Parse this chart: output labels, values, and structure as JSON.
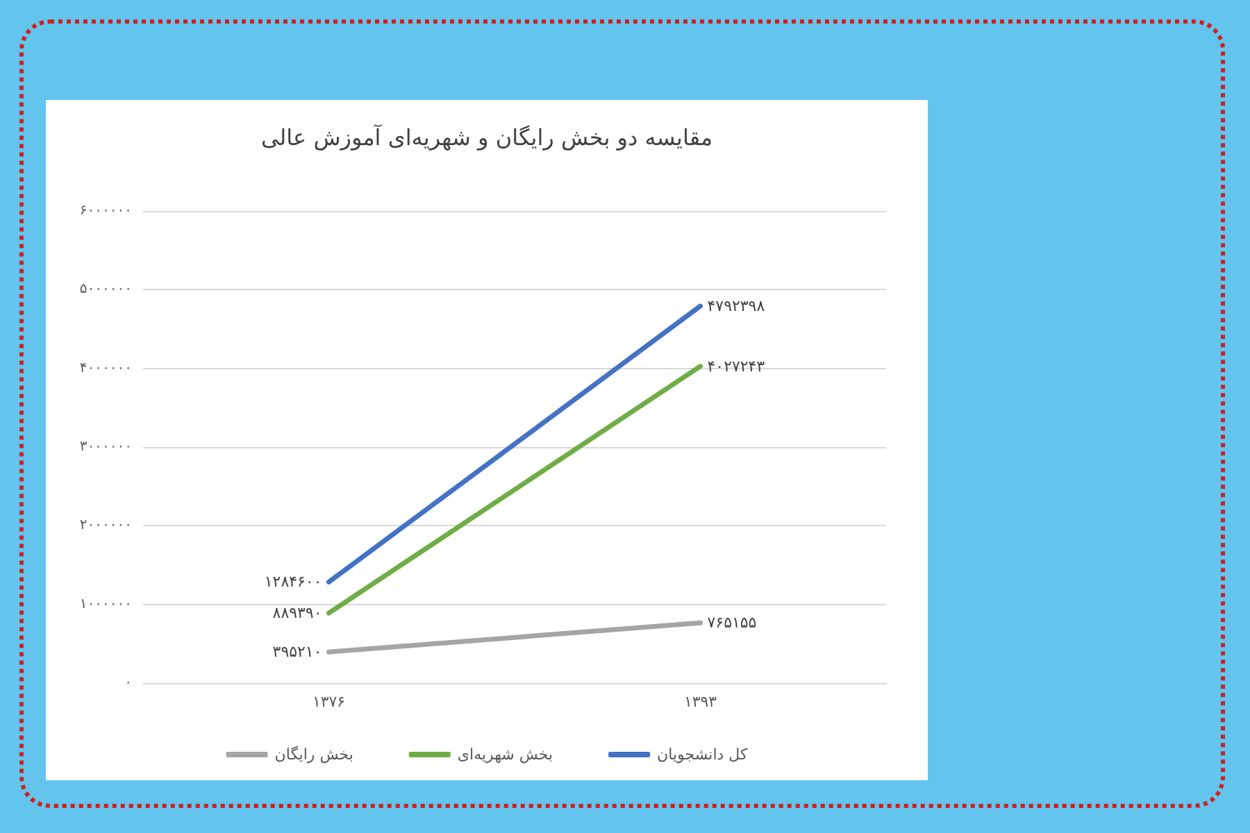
{
  "chart_data": {
    "type": "line",
    "title": "مقایسه دو بخش رایگان و شهریه‌ای آموزش عالی",
    "categories": [
      "۱۳۷۶",
      "۱۳۹۳"
    ],
    "series": [
      {
        "name": "بخش رایگان",
        "color": "#a5a5a5",
        "values": [
          395210,
          765155
        ],
        "value_labels": [
          "۳۹۵۲۱۰",
          "۷۶۵۱۵۵"
        ]
      },
      {
        "name": "بخش شهریه‌ای",
        "color": "#70ad47",
        "values": [
          889390,
          4027243
        ],
        "value_labels": [
          "۸۸۹۳۹۰",
          "۴۰۲۷۲۴۳"
        ]
      },
      {
        "name": "کل دانشجویان",
        "color": "#4472c4",
        "values": [
          1284600,
          4792398
        ],
        "value_labels": [
          "۱۲۸۴۶۰۰",
          "۴۷۹۲۳۹۸"
        ]
      }
    ],
    "ylim": [
      0,
      6000000
    ],
    "yticks": [
      {
        "value": 0,
        "label": "۰"
      },
      {
        "value": 1000000,
        "label": "۱۰۰۰۰۰۰"
      },
      {
        "value": 2000000,
        "label": "۲۰۰۰۰۰۰"
      },
      {
        "value": 3000000,
        "label": "۳۰۰۰۰۰۰"
      },
      {
        "value": 4000000,
        "label": "۴۰۰۰۰۰۰"
      },
      {
        "value": 5000000,
        "label": "۵۰۰۰۰۰۰"
      },
      {
        "value": 6000000,
        "label": "۶۰۰۰۰۰۰"
      }
    ],
    "grid": "y",
    "legend": "bottom",
    "marker": "none",
    "line_style": "solid"
  }
}
